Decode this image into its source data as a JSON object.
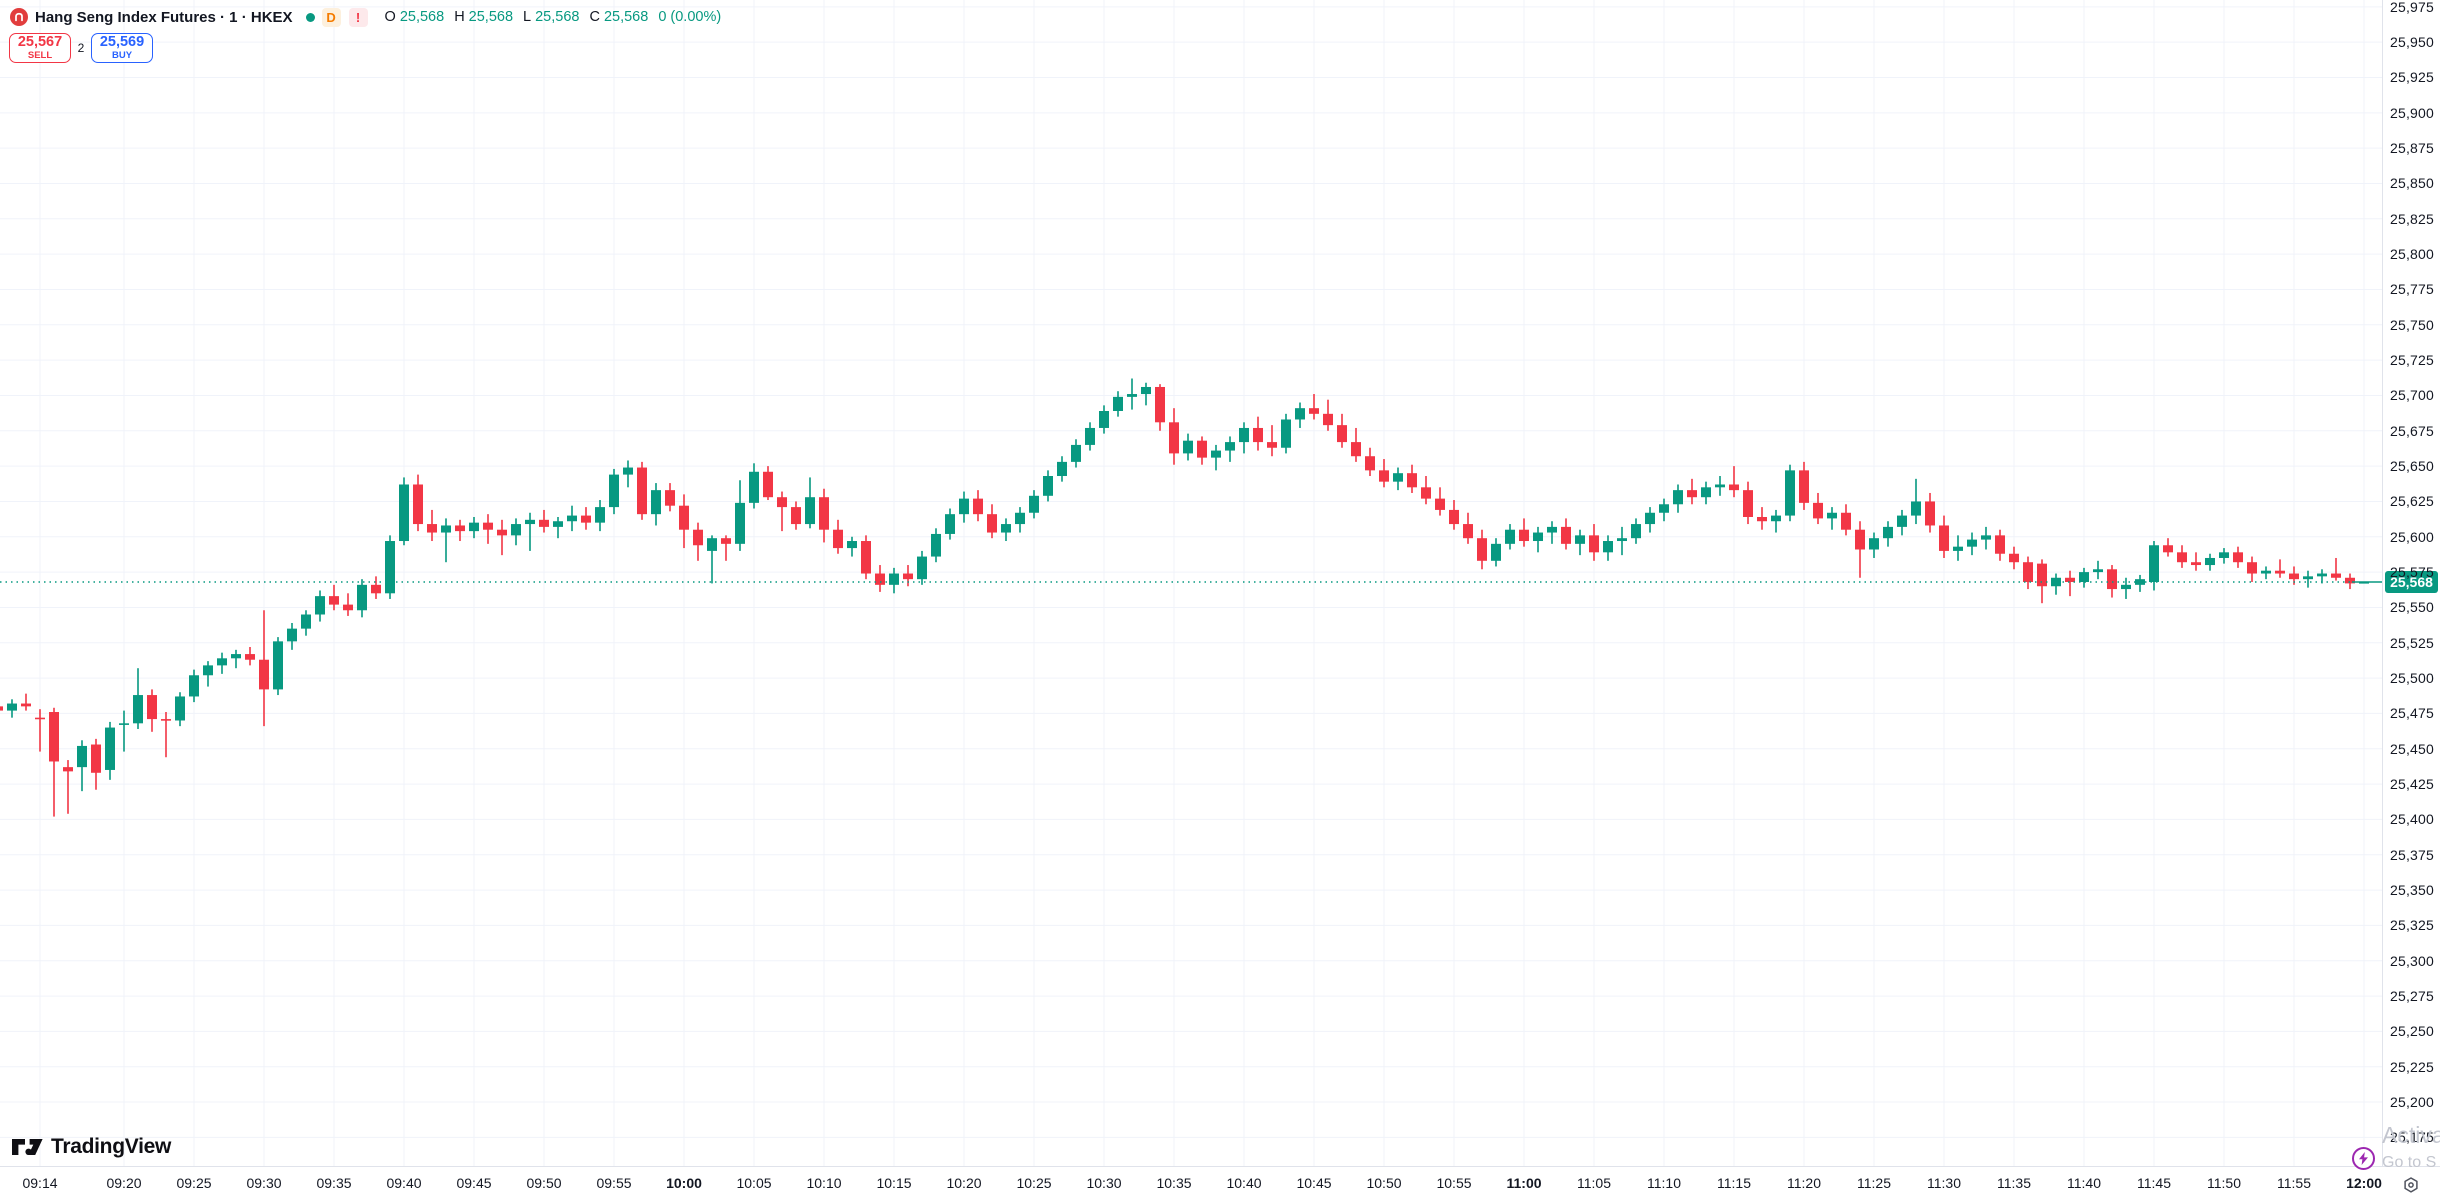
{
  "header": {
    "symbol_title": "Hang Seng Index Futures · 1 · HKEX",
    "interval_badge": "D",
    "alert_badge": "!",
    "ohlc": {
      "open_label": "O",
      "open": "25,568",
      "high_label": "H",
      "high": "25,568",
      "low_label": "L",
      "low": "25,568",
      "close_label": "C",
      "close": "25,568",
      "change": "0 (0.00%)"
    }
  },
  "trade_panel": {
    "sell_price": "25,567",
    "sell_label": "SELL",
    "spread": "2",
    "buy_price": "25,569",
    "buy_label": "BUY"
  },
  "footer": {
    "brand": "TradingView"
  },
  "watermark": {
    "line1": "Activa",
    "line2": "Go to S"
  },
  "colors": {
    "up": "#089981",
    "down": "#F23645",
    "buy_blue": "#2962FF",
    "sell_red": "#F23645",
    "grid": "#f0f3fa",
    "axis_border": "#e0e3eb",
    "text_dark": "#131722",
    "purple": "#9c27b0"
  },
  "price_axis": {
    "max": 25975,
    "min": 25175,
    "step": 25,
    "current_price": 25568,
    "current_price_label": "25,568"
  },
  "time_axis": {
    "labels": [
      "09:14",
      "09:20",
      "09:25",
      "09:30",
      "09:35",
      "09:40",
      "09:45",
      "09:50",
      "09:55",
      "10:00",
      "10:05",
      "10:10",
      "10:15",
      "10:20",
      "10:25",
      "10:30",
      "10:35",
      "10:40",
      "10:45",
      "10:50",
      "10:55",
      "11:00",
      "11:05",
      "11:10",
      "11:15",
      "11:20",
      "11:25",
      "11:30",
      "11:35",
      "11:40",
      "11:45",
      "11:50",
      "11:55",
      "12:00"
    ],
    "bold_labels": [
      "10:00",
      "11:00",
      "12:00"
    ]
  },
  "chart_data": {
    "type": "candlestick",
    "title": "Hang Seng Index Futures",
    "interval": "1 minute",
    "exchange": "HKEX",
    "x_range": [
      "09:11",
      "12:00"
    ],
    "y_range": [
      25175,
      25975
    ],
    "grid": true,
    "legend_position": "top-left",
    "up_color": "#089981",
    "down_color": "#F23645",
    "current_price": 25568,
    "candles": [
      [
        "09:11",
        25480,
        25486,
        25473,
        25477
      ],
      [
        "09:12",
        25477,
        25485,
        25472,
        25482
      ],
      [
        "09:13",
        25482,
        25489,
        25477,
        25480
      ],
      [
        "09:14",
        25472,
        25478,
        25448,
        25471
      ],
      [
        "09:15",
        25476,
        25479,
        25402,
        25441
      ],
      [
        "09:16",
        25437,
        25442,
        25404,
        25434
      ],
      [
        "09:17",
        25437,
        25456,
        25420,
        25452
      ],
      [
        "09:18",
        25453,
        25457,
        25421,
        25433
      ],
      [
        "09:19",
        25435,
        25469,
        25428,
        25465
      ],
      [
        "09:20",
        25467,
        25477,
        25448,
        25468
      ],
      [
        "09:21",
        25468,
        25507,
        25464,
        25488
      ],
      [
        "09:22",
        25488,
        25492,
        25462,
        25471
      ],
      [
        "09:23",
        25471,
        25476,
        25444,
        25470
      ],
      [
        "09:24",
        25470,
        25490,
        25466,
        25487
      ],
      [
        "09:25",
        25487,
        25506,
        25483,
        25502
      ],
      [
        "09:26",
        25502,
        25512,
        25494,
        25509
      ],
      [
        "09:27",
        25509,
        25518,
        25503,
        25514
      ],
      [
        "09:28",
        25514,
        25520,
        25507,
        25517
      ],
      [
        "09:29",
        25517,
        25522,
        25509,
        25513
      ],
      [
        "09:30",
        25513,
        25548,
        25466,
        25492
      ],
      [
        "09:31",
        25492,
        25529,
        25488,
        25526
      ],
      [
        "09:32",
        25526,
        25539,
        25520,
        25535
      ],
      [
        "09:33",
        25535,
        25548,
        25530,
        25545
      ],
      [
        "09:34",
        25545,
        25562,
        25540,
        25558
      ],
      [
        "09:35",
        25558,
        25566,
        25548,
        25552
      ],
      [
        "09:36",
        25552,
        25560,
        25544,
        25548
      ],
      [
        "09:37",
        25548,
        25570,
        25543,
        25566
      ],
      [
        "09:38",
        25566,
        25572,
        25556,
        25560
      ],
      [
        "09:39",
        25560,
        25601,
        25556,
        25597
      ],
      [
        "09:40",
        25597,
        25642,
        25594,
        25637
      ],
      [
        "09:41",
        25637,
        25644,
        25604,
        25609
      ],
      [
        "09:42",
        25609,
        25619,
        25597,
        25603
      ],
      [
        "09:43",
        25603,
        25613,
        25582,
        25608
      ],
      [
        "09:44",
        25608,
        25612,
        25597,
        25604
      ],
      [
        "09:45",
        25604,
        25614,
        25599,
        25610
      ],
      [
        "09:46",
        25610,
        25616,
        25595,
        25605
      ],
      [
        "09:47",
        25605,
        25612,
        25587,
        25601
      ],
      [
        "09:48",
        25601,
        25613,
        25594,
        25609
      ],
      [
        "09:49",
        25609,
        25617,
        25590,
        25612
      ],
      [
        "09:50",
        25612,
        25619,
        25603,
        25607
      ],
      [
        "09:51",
        25607,
        25614,
        25599,
        25611
      ],
      [
        "09:52",
        25611,
        25622,
        25604,
        25615
      ],
      [
        "09:53",
        25615,
        25621,
        25605,
        25610
      ],
      [
        "09:54",
        25610,
        25626,
        25604,
        25621
      ],
      [
        "09:55",
        25621,
        25648,
        25616,
        25644
      ],
      [
        "09:56",
        25644,
        25654,
        25635,
        25649
      ],
      [
        "09:57",
        25649,
        25653,
        25612,
        25616
      ],
      [
        "09:58",
        25616,
        25638,
        25608,
        25633
      ],
      [
        "09:59",
        25633,
        25638,
        25618,
        25622
      ],
      [
        "10:00",
        25622,
        25630,
        25592,
        25605
      ],
      [
        "10:01",
        25605,
        25610,
        25583,
        25594
      ],
      [
        "10:02",
        25590,
        25601,
        25567,
        25599
      ],
      [
        "10:03",
        25599,
        25601,
        25583,
        25595
      ],
      [
        "10:04",
        25595,
        25640,
        25590,
        25624
      ],
      [
        "10:05",
        25624,
        25652,
        25620,
        25646
      ],
      [
        "10:06",
        25646,
        25650,
        25626,
        25628
      ],
      [
        "10:07",
        25628,
        25632,
        25604,
        25621
      ],
      [
        "10:08",
        25621,
        25625,
        25605,
        25609
      ],
      [
        "10:09",
        25609,
        25642,
        25606,
        25628
      ],
      [
        "10:10",
        25628,
        25634,
        25596,
        25605
      ],
      [
        "10:11",
        25605,
        25612,
        25588,
        25592
      ],
      [
        "10:12",
        25592,
        25600,
        25586,
        25597
      ],
      [
        "10:13",
        25597,
        25601,
        25570,
        25574
      ],
      [
        "10:14",
        25574,
        25580,
        25561,
        25566
      ],
      [
        "10:15",
        25566,
        25578,
        25560,
        25574
      ],
      [
        "10:16",
        25574,
        25580,
        25565,
        25570
      ],
      [
        "10:17",
        25570,
        25590,
        25566,
        25586
      ],
      [
        "10:18",
        25586,
        25606,
        25582,
        25602
      ],
      [
        "10:19",
        25602,
        25620,
        25598,
        25616
      ],
      [
        "10:20",
        25616,
        25632,
        25610,
        25627
      ],
      [
        "10:21",
        25627,
        25633,
        25611,
        25616
      ],
      [
        "10:22",
        25616,
        25623,
        25599,
        25603
      ],
      [
        "10:23",
        25603,
        25613,
        25597,
        25609
      ],
      [
        "10:24",
        25609,
        25621,
        25603,
        25617
      ],
      [
        "10:25",
        25617,
        25633,
        25613,
        25629
      ],
      [
        "10:26",
        25629,
        25647,
        25625,
        25643
      ],
      [
        "10:27",
        25643,
        25657,
        25639,
        25653
      ],
      [
        "10:28",
        25653,
        25669,
        25649,
        25665
      ],
      [
        "10:29",
        25665,
        25681,
        25661,
        25677
      ],
      [
        "10:30",
        25677,
        25693,
        25673,
        25689
      ],
      [
        "10:31",
        25689,
        25703,
        25685,
        25699
      ],
      [
        "10:32",
        25699,
        25712,
        25690,
        25701
      ],
      [
        "10:33",
        25701,
        25709,
        25693,
        25706
      ],
      [
        "10:34",
        25706,
        25708,
        25675,
        25681
      ],
      [
        "10:35",
        25681,
        25691,
        25651,
        25659
      ],
      [
        "10:36",
        25659,
        25673,
        25654,
        25668
      ],
      [
        "10:37",
        25668,
        25671,
        25651,
        25656
      ],
      [
        "10:38",
        25656,
        25665,
        25647,
        25661
      ],
      [
        "10:39",
        25661,
        25671,
        25653,
        25667
      ],
      [
        "10:40",
        25667,
        25681,
        25659,
        25677
      ],
      [
        "10:41",
        25677,
        25685,
        25661,
        25667
      ],
      [
        "10:42",
        25667,
        25679,
        25657,
        25663
      ],
      [
        "10:43",
        25663,
        25687,
        25659,
        25683
      ],
      [
        "10:44",
        25683,
        25695,
        25677,
        25691
      ],
      [
        "10:45",
        25691,
        25701,
        25683,
        25687
      ],
      [
        "10:46",
        25687,
        25697,
        25675,
        25679
      ],
      [
        "10:47",
        25679,
        25687,
        25663,
        25667
      ],
      [
        "10:48",
        25667,
        25677,
        25653,
        25657
      ],
      [
        "10:49",
        25657,
        25663,
        25643,
        25647
      ],
      [
        "10:50",
        25647,
        25655,
        25635,
        25639
      ],
      [
        "10:51",
        25639,
        25649,
        25633,
        25645
      ],
      [
        "10:52",
        25645,
        25651,
        25631,
        25635
      ],
      [
        "10:53",
        25635,
        25643,
        25623,
        25627
      ],
      [
        "10:54",
        25627,
        25635,
        25615,
        25619
      ],
      [
        "10:55",
        25619,
        25626,
        25605,
        25609
      ],
      [
        "10:56",
        25609,
        25617,
        25595,
        25599
      ],
      [
        "10:57",
        25599,
        25605,
        25577,
        25583
      ],
      [
        "10:58",
        25583,
        25599,
        25579,
        25595
      ],
      [
        "10:59",
        25595,
        25609,
        25591,
        25605
      ],
      [
        "11:00",
        25605,
        25613,
        25593,
        25597
      ],
      [
        "11:01",
        25597,
        25607,
        25589,
        25603
      ],
      [
        "11:02",
        25603,
        25611,
        25595,
        25607
      ],
      [
        "11:03",
        25607,
        25613,
        25591,
        25595
      ],
      [
        "11:04",
        25595,
        25605,
        25587,
        25601
      ],
      [
        "11:05",
        25601,
        25609,
        25583,
        25589
      ],
      [
        "11:06",
        25589,
        25601,
        25583,
        25597
      ],
      [
        "11:07",
        25597,
        25607,
        25587,
        25599
      ],
      [
        "11:08",
        25599,
        25613,
        25595,
        25609
      ],
      [
        "11:09",
        25609,
        25621,
        25603,
        25617
      ],
      [
        "11:10",
        25617,
        25627,
        25611,
        25623
      ],
      [
        "11:11",
        25623,
        25637,
        25617,
        25633
      ],
      [
        "11:12",
        25633,
        25641,
        25623,
        25628
      ],
      [
        "11:13",
        25628,
        25639,
        25623,
        25635
      ],
      [
        "11:14",
        25635,
        25643,
        25629,
        25637
      ],
      [
        "11:15",
        25637,
        25650,
        25628,
        25633
      ],
      [
        "11:16",
        25633,
        25639,
        25609,
        25614
      ],
      [
        "11:17",
        25614,
        25621,
        25605,
        25611
      ],
      [
        "11:18",
        25611,
        25619,
        25603,
        25615
      ],
      [
        "11:19",
        25615,
        25651,
        25611,
        25647
      ],
      [
        "11:20",
        25647,
        25653,
        25619,
        25624
      ],
      [
        "11:21",
        25624,
        25631,
        25609,
        25613
      ],
      [
        "11:22",
        25613,
        25621,
        25605,
        25617
      ],
      [
        "11:23",
        25617,
        25623,
        25601,
        25605
      ],
      [
        "11:24",
        25605,
        25611,
        25571,
        25591
      ],
      [
        "11:25",
        25591,
        25603,
        25585,
        25599
      ],
      [
        "11:26",
        25599,
        25611,
        25593,
        25607
      ],
      [
        "11:27",
        25607,
        25619,
        25601,
        25615
      ],
      [
        "11:28",
        25615,
        25641,
        25609,
        25625
      ],
      [
        "11:29",
        25625,
        25631,
        25603,
        25608
      ],
      [
        "11:30",
        25608,
        25615,
        25585,
        25590
      ],
      [
        "11:31",
        25590,
        25601,
        25583,
        25593
      ],
      [
        "11:32",
        25593,
        25603,
        25587,
        25598
      ],
      [
        "11:33",
        25598,
        25607,
        25591,
        25601
      ],
      [
        "11:34",
        25601,
        25605,
        25583,
        25588
      ],
      [
        "11:35",
        25588,
        25593,
        25577,
        25582
      ],
      [
        "11:36",
        25582,
        25586,
        25563,
        25568
      ],
      [
        "11:37",
        25581,
        25584,
        25553,
        25565
      ],
      [
        "11:38",
        25565,
        25574,
        25559,
        25571
      ],
      [
        "11:39",
        25571,
        25576,
        25558,
        25568
      ],
      [
        "11:40",
        25568,
        25578,
        25564,
        25575
      ],
      [
        "11:41",
        25575,
        25583,
        25570,
        25577
      ],
      [
        "11:42",
        25577,
        25580,
        25557,
        25563
      ],
      [
        "11:43",
        25563,
        25571,
        25556,
        25566
      ],
      [
        "11:44",
        25566,
        25573,
        25561,
        25570
      ],
      [
        "11:45",
        25568,
        25597,
        25562,
        25594
      ],
      [
        "11:46",
        25594,
        25599,
        25586,
        25589
      ],
      [
        "11:47",
        25589,
        25594,
        25578,
        25582
      ],
      [
        "11:48",
        25582,
        25589,
        25576,
        25580
      ],
      [
        "11:49",
        25580,
        25588,
        25576,
        25585
      ],
      [
        "11:50",
        25585,
        25592,
        25581,
        25589
      ],
      [
        "11:51",
        25589,
        25593,
        25578,
        25582
      ],
      [
        "11:52",
        25582,
        25586,
        25568,
        25574
      ],
      [
        "11:53",
        25574,
        25579,
        25570,
        25576
      ],
      [
        "11:54",
        25576,
        25584,
        25571,
        25574
      ],
      [
        "11:55",
        25574,
        25579,
        25566,
        25570
      ],
      [
        "11:56",
        25570,
        25576,
        25564,
        25572
      ],
      [
        "11:57",
        25572,
        25577,
        25567,
        25574
      ],
      [
        "11:58",
        25574,
        25585,
        25569,
        25571
      ],
      [
        "11:59",
        25571,
        25574,
        25563,
        25567
      ],
      [
        "12:00",
        25568,
        25568,
        25568,
        25568
      ]
    ]
  }
}
